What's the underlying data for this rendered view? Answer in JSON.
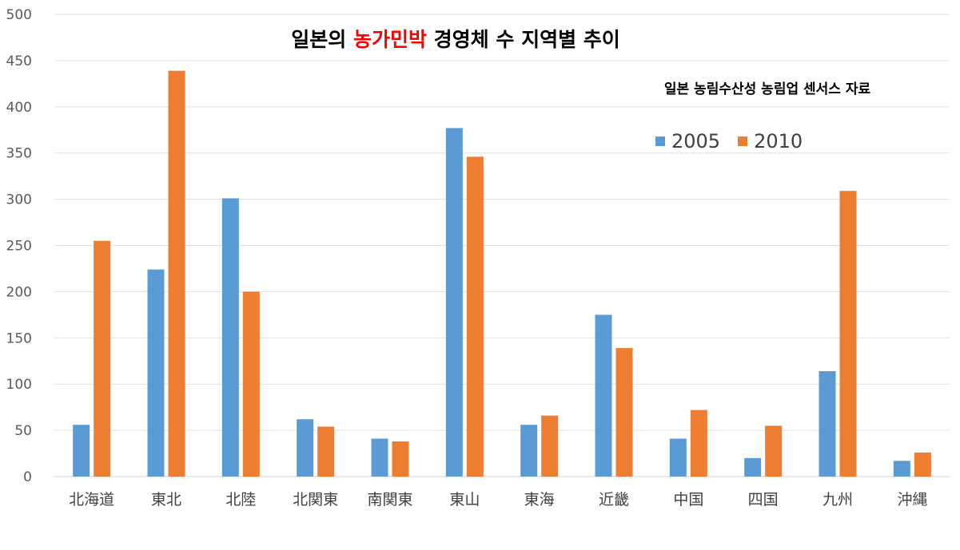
{
  "chart_data": {
    "type": "bar",
    "title_parts": [
      {
        "text": "일본의 ",
        "highlight": false
      },
      {
        "text": "농가민박",
        "highlight": true
      },
      {
        "text": " 경영체 수 지역별 추이",
        "highlight": false
      }
    ],
    "subtitle": "일본 농림수산성 농림업 센서스 자료",
    "categories": [
      "北海道",
      "東北",
      "北陸",
      "北関東",
      "南関東",
      "東山",
      "東海",
      "近畿",
      "中国",
      "四国",
      "九州",
      "沖縄"
    ],
    "series": [
      {
        "name": "2005",
        "color": "#5b9bd5",
        "values": [
          56,
          224,
          301,
          62,
          41,
          377,
          56,
          175,
          41,
          20,
          114,
          17
        ]
      },
      {
        "name": "2010",
        "color": "#ed7d31",
        "values": [
          255,
          439,
          200,
          54,
          38,
          346,
          66,
          139,
          72,
          55,
          309,
          26
        ]
      }
    ],
    "ylim": [
      0,
      500
    ],
    "yticks": [
      0,
      50,
      100,
      150,
      200,
      250,
      300,
      350,
      400,
      450,
      500
    ],
    "grid": true,
    "legend_position": "top-right",
    "highlight_color": "#ff0000"
  }
}
